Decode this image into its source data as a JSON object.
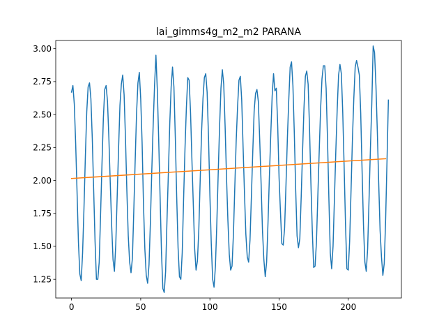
{
  "chart_data": {
    "type": "line",
    "title": "lai_gimms4g_m2_m2 PARANA",
    "xlabel": "",
    "ylabel": "",
    "xlim": [
      -11.4,
      238.4
    ],
    "ylim": [
      1.108,
      3.062
    ],
    "x_ticks": [
      0,
      50,
      100,
      150,
      200
    ],
    "y_ticks": [
      1.25,
      1.5,
      1.75,
      2.0,
      2.25,
      2.5,
      2.75,
      3.0
    ],
    "x_tick_labels": [
      "0",
      "50",
      "100",
      "150",
      "200"
    ],
    "y_tick_labels": [
      "1.25",
      "1.50",
      "1.75",
      "2.00",
      "2.25",
      "2.50",
      "2.75",
      "3.00"
    ],
    "grid": false,
    "colors": {
      "series": "#1f77b4",
      "trend": "#ff7f0e"
    },
    "series": [
      {
        "values": [
          2.67,
          2.72,
          2.58,
          2.28,
          1.91,
          1.53,
          1.29,
          1.24,
          1.45,
          1.79,
          2.18,
          2.52,
          2.71,
          2.74,
          2.62,
          2.32,
          1.93,
          1.54,
          1.25,
          1.25,
          1.38,
          1.74,
          2.12,
          2.47,
          2.69,
          2.72,
          2.6,
          2.32,
          1.98,
          1.66,
          1.4,
          1.31,
          1.52,
          1.88,
          2.24,
          2.57,
          2.73,
          2.8,
          2.65,
          2.32,
          1.92,
          1.58,
          1.38,
          1.3,
          1.41,
          1.77,
          2.15,
          2.51,
          2.74,
          2.82,
          2.62,
          2.29,
          1.82,
          1.48,
          1.28,
          1.22,
          1.36,
          1.68,
          2.07,
          2.42,
          2.72,
          2.95,
          2.69,
          2.31,
          1.88,
          1.46,
          1.18,
          1.15,
          1.31,
          1.7,
          2.06,
          2.43,
          2.71,
          2.86,
          2.71,
          2.33,
          1.88,
          1.49,
          1.27,
          1.25,
          1.45,
          1.86,
          2.24,
          2.55,
          2.78,
          2.76,
          2.52,
          2.16,
          1.82,
          1.48,
          1.32,
          1.39,
          1.63,
          2.01,
          2.37,
          2.62,
          2.78,
          2.81,
          2.67,
          2.33,
          1.89,
          1.52,
          1.25,
          1.19,
          1.35,
          1.67,
          2.05,
          2.41,
          2.7,
          2.84,
          2.73,
          2.41,
          2.03,
          1.7,
          1.44,
          1.32,
          1.35,
          1.59,
          1.95,
          2.3,
          2.56,
          2.76,
          2.79,
          2.61,
          2.25,
          1.9,
          1.59,
          1.42,
          1.38,
          1.55,
          1.88,
          2.22,
          2.53,
          2.66,
          2.69,
          2.6,
          2.31,
          1.98,
          1.62,
          1.4,
          1.27,
          1.38,
          1.68,
          2.03,
          2.35,
          2.64,
          2.81,
          2.68,
          2.7,
          2.42,
          2.02,
          1.76,
          1.52,
          1.51,
          1.64,
          1.97,
          2.32,
          2.61,
          2.86,
          2.9,
          2.72,
          2.36,
          1.93,
          1.58,
          1.49,
          1.56,
          1.88,
          2.23,
          2.55,
          2.79,
          2.83,
          2.73,
          2.4,
          1.98,
          1.62,
          1.34,
          1.35,
          1.53,
          1.88,
          2.22,
          2.54,
          2.77,
          2.87,
          2.87,
          2.7,
          2.31,
          1.86,
          1.45,
          1.33,
          1.5,
          1.86,
          2.22,
          2.54,
          2.8,
          2.88,
          2.81,
          2.52,
          2.11,
          1.67,
          1.33,
          1.32,
          1.54,
          1.92,
          2.31,
          2.62,
          2.86,
          2.91,
          2.86,
          2.8,
          2.51,
          2.07,
          1.66,
          1.38,
          1.31,
          1.48,
          1.85,
          2.24,
          2.58,
          3.02,
          2.97,
          2.72,
          2.37,
          1.98,
          1.62,
          1.42,
          1.28,
          1.37,
          1.7,
          2.15,
          2.61
        ]
      },
      {
        "x": [
          0,
          227
        ],
        "values": [
          2.015,
          2.165
        ]
      }
    ]
  }
}
